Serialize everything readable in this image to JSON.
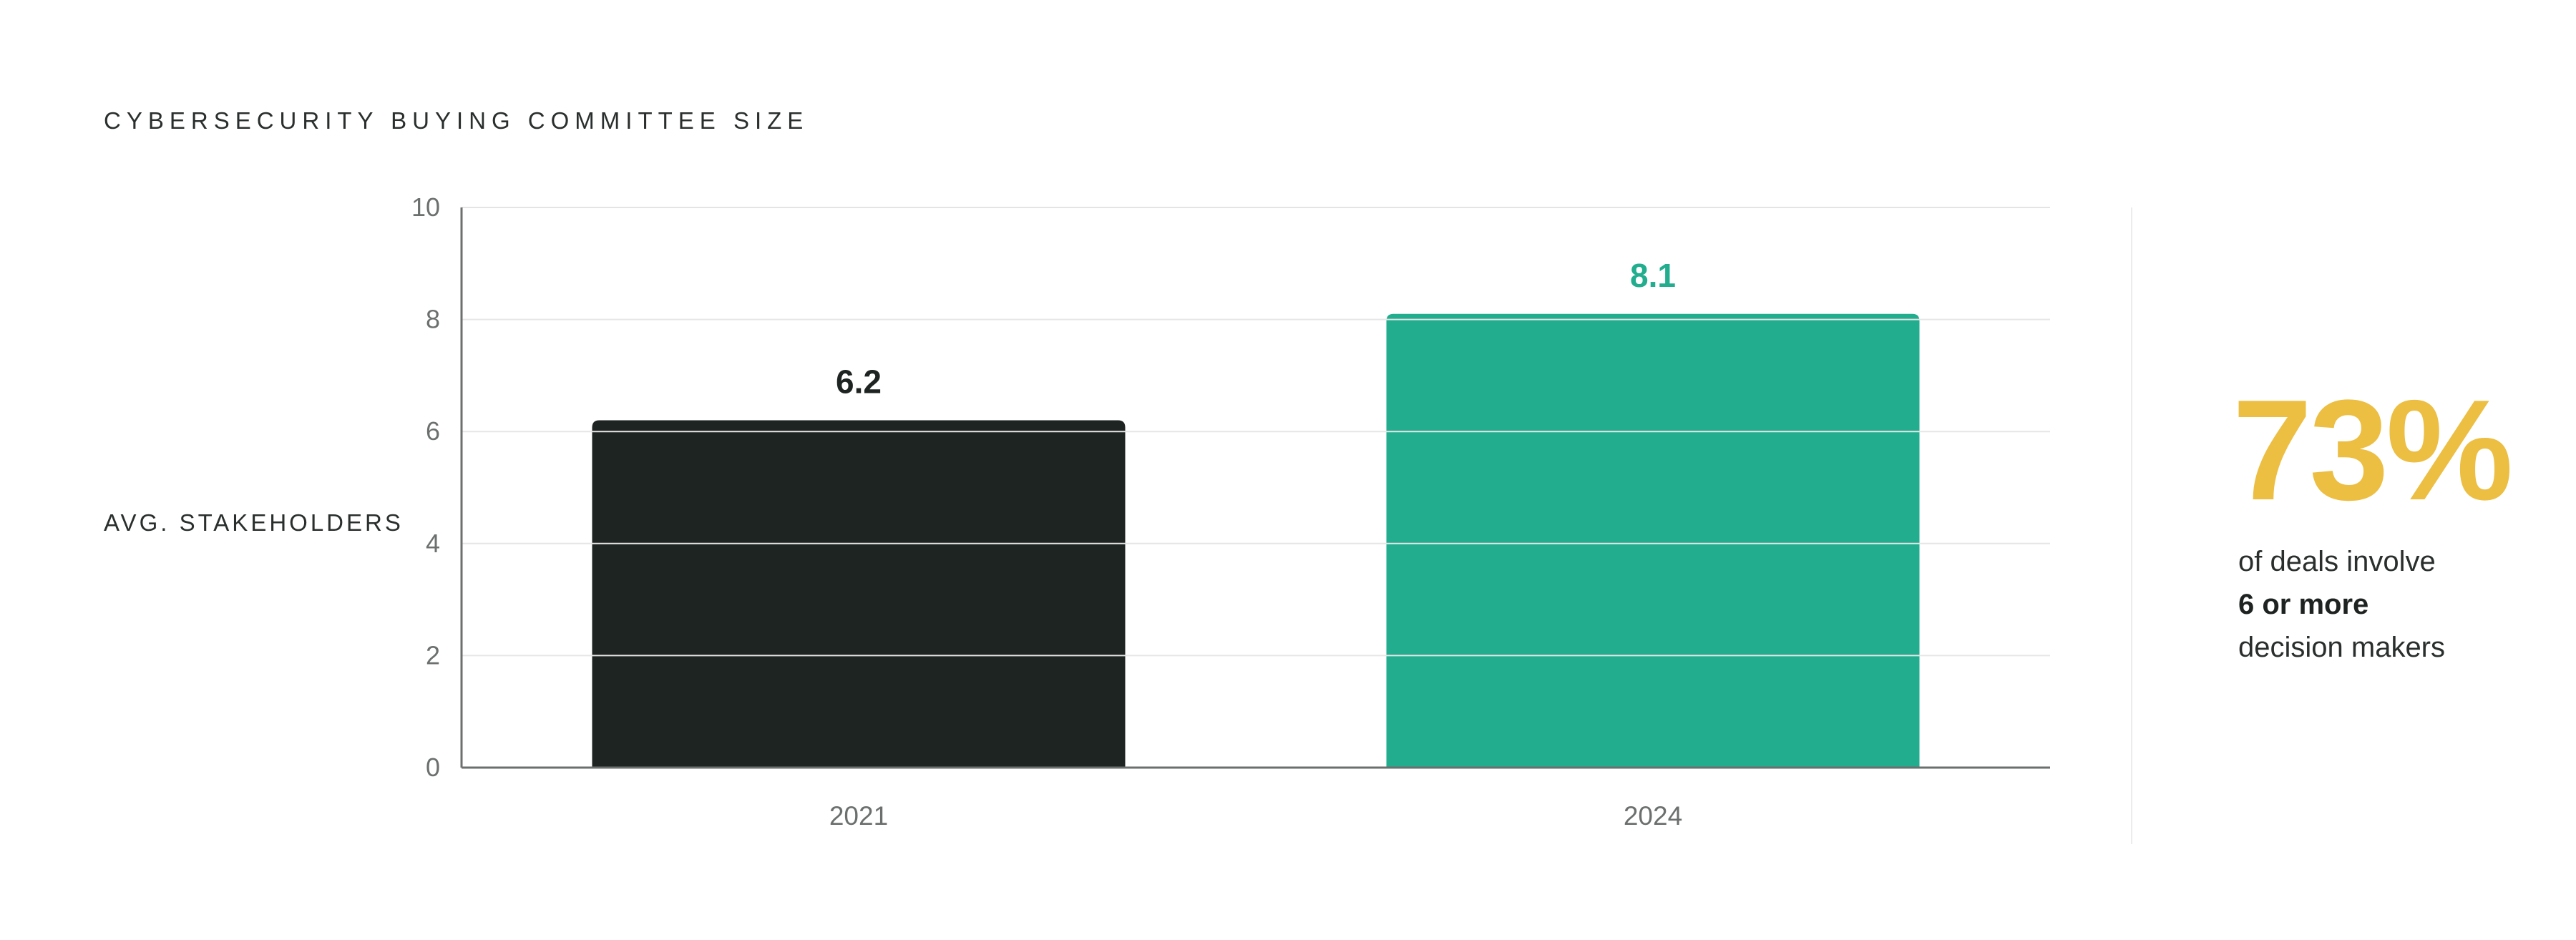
{
  "chart_data": {
    "type": "bar",
    "title": "CYBERSECURITY BUYING COMMITTEE SIZE",
    "ylabel": "AVG. STAKEHOLDERS",
    "xlabel": "",
    "categories": [
      "2021",
      "2024"
    ],
    "values": [
      6.2,
      8.1
    ],
    "value_labels": [
      "6.2",
      "8.1"
    ],
    "bar_colors": [
      "#1e2422",
      "#21ad8e"
    ],
    "value_label_colors": [
      "#1e2422",
      "#21ad8e"
    ],
    "ylim": [
      0,
      10
    ],
    "yticks": [
      0,
      2,
      4,
      6,
      8,
      10
    ],
    "grid": true
  },
  "callout": {
    "stat": "73%",
    "line1": "of deals involve",
    "line2": "6 or more",
    "line3": "decision makers",
    "stat_color": "#ecbe42"
  }
}
